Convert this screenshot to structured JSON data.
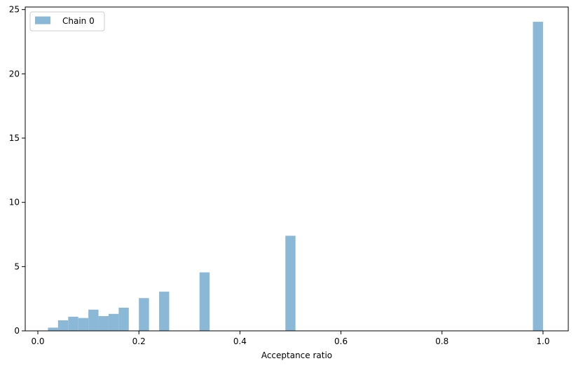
{
  "chart_data": {
    "type": "bar",
    "title": "",
    "xlabel": "Acceptance ratio",
    "ylabel": "",
    "xlim": [
      -0.025,
      1.05
    ],
    "ylim": [
      0,
      25.2
    ],
    "xticks": [
      0.0,
      0.2,
      0.4,
      0.6,
      0.8,
      1.0
    ],
    "xtick_labels": [
      "0.0",
      "0.2",
      "0.4",
      "0.6",
      "0.8",
      "1.0"
    ],
    "yticks": [
      0,
      5,
      10,
      15,
      20,
      25
    ],
    "ytick_labels": [
      "0",
      "5",
      "10",
      "15",
      "20",
      "25"
    ],
    "grid": false,
    "legend_position": "top-left",
    "bin_width": 0.02,
    "series": [
      {
        "name": "Chain 0",
        "color": "#8cb8d8",
        "bins": [
          {
            "x": 0.02,
            "value": 0.25
          },
          {
            "x": 0.04,
            "value": 0.82
          },
          {
            "x": 0.06,
            "value": 1.1
          },
          {
            "x": 0.08,
            "value": 1.0
          },
          {
            "x": 0.1,
            "value": 1.65
          },
          {
            "x": 0.12,
            "value": 1.15
          },
          {
            "x": 0.14,
            "value": 1.32
          },
          {
            "x": 0.16,
            "value": 1.8
          },
          {
            "x": 0.2,
            "value": 2.55
          },
          {
            "x": 0.24,
            "value": 3.05
          },
          {
            "x": 0.32,
            "value": 4.55
          },
          {
            "x": 0.49,
            "value": 7.4
          },
          {
            "x": 0.98,
            "value": 24.05
          }
        ]
      }
    ]
  }
}
